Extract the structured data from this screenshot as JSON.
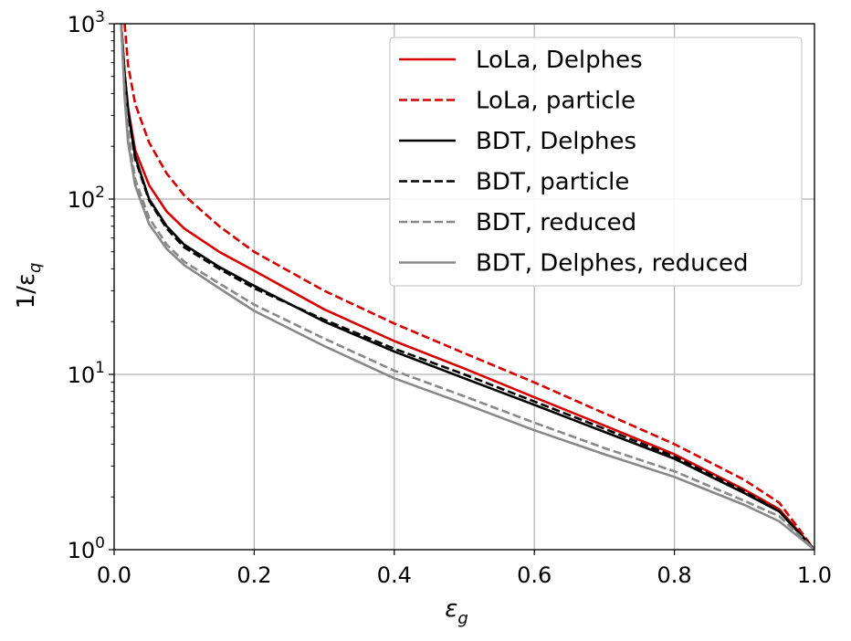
{
  "chart_data": {
    "type": "line",
    "title": "",
    "xlabel_main": "ε",
    "xlabel_sub": "g",
    "ylabel_main": "1/ε",
    "ylabel_sub": "q",
    "xlim": [
      0.0,
      1.0
    ],
    "ylim": [
      1,
      1000
    ],
    "yscale": "log",
    "grid": true,
    "legend_position": "top-right",
    "x_ticks": [
      "0.0",
      "0.2",
      "0.4",
      "0.6",
      "0.8",
      "1.0"
    ],
    "y_ticks": [
      {
        "base": "10",
        "exp": "0",
        "value": 1
      },
      {
        "base": "10",
        "exp": "1",
        "value": 10
      },
      {
        "base": "10",
        "exp": "2",
        "value": 100
      },
      {
        "base": "10",
        "exp": "3",
        "value": 1000
      }
    ],
    "series": [
      {
        "name": "LoLa, Delphes",
        "color": "#d40000",
        "dash": "solid",
        "x": [
          0.01,
          0.015,
          0.02,
          0.03,
          0.05,
          0.075,
          0.1,
          0.15,
          0.2,
          0.3,
          0.4,
          0.5,
          0.6,
          0.7,
          0.8,
          0.9,
          0.95,
          1.0
        ],
        "y": [
          1000,
          520,
          330,
          190,
          120,
          85,
          68,
          50,
          39,
          23.5,
          15.5,
          10.8,
          7.4,
          5.1,
          3.5,
          2.2,
          1.7,
          1.0
        ]
      },
      {
        "name": "LoLa, particle",
        "color": "#d40000",
        "dash": "dashed",
        "x": [
          0.015,
          0.02,
          0.03,
          0.05,
          0.075,
          0.1,
          0.15,
          0.2,
          0.3,
          0.4,
          0.5,
          0.6,
          0.7,
          0.8,
          0.9,
          0.95,
          1.0
        ],
        "y": [
          1000,
          580,
          350,
          210,
          140,
          105,
          70,
          50,
          30,
          19.5,
          13.2,
          9.0,
          6.0,
          4.0,
          2.5,
          1.85,
          1.0
        ]
      },
      {
        "name": "BDT, Delphes",
        "color": "#000000",
        "dash": "solid",
        "x": [
          0.01,
          0.015,
          0.02,
          0.03,
          0.05,
          0.075,
          0.1,
          0.15,
          0.2,
          0.3,
          0.4,
          0.5,
          0.6,
          0.7,
          0.8,
          0.9,
          0.95,
          1.0
        ],
        "y": [
          1000,
          520,
          320,
          175,
          100,
          70,
          55,
          41,
          32,
          20,
          13.5,
          9.5,
          6.7,
          4.7,
          3.3,
          2.1,
          1.65,
          1.0
        ]
      },
      {
        "name": "BDT, particle",
        "color": "#000000",
        "dash": "dashed",
        "x": [
          0.01,
          0.015,
          0.02,
          0.03,
          0.05,
          0.075,
          0.1,
          0.15,
          0.2,
          0.3,
          0.4,
          0.5,
          0.6,
          0.7,
          0.8,
          0.9,
          0.95,
          1.0
        ],
        "y": [
          1000,
          500,
          310,
          170,
          98,
          68,
          53,
          40,
          31,
          20.5,
          14,
          10,
          7.0,
          4.9,
          3.4,
          2.15,
          1.65,
          1.0
        ]
      },
      {
        "name": "BDT, reduced",
        "color": "#888888",
        "dash": "dashed",
        "x": [
          0.01,
          0.015,
          0.02,
          0.03,
          0.05,
          0.075,
          0.1,
          0.15,
          0.2,
          0.3,
          0.4,
          0.5,
          0.6,
          0.7,
          0.8,
          0.9,
          0.95,
          1.0
        ],
        "y": [
          1000,
          420,
          240,
          130,
          78,
          55,
          44,
          33,
          25,
          16,
          10.5,
          7.5,
          5.3,
          3.8,
          2.8,
          1.9,
          1.55,
          1.0
        ]
      },
      {
        "name": "BDT, Delphes, reduced",
        "color": "#888888",
        "dash": "solid",
        "x": [
          0.01,
          0.015,
          0.02,
          0.03,
          0.05,
          0.075,
          0.1,
          0.15,
          0.2,
          0.3,
          0.4,
          0.5,
          0.6,
          0.7,
          0.8,
          0.9,
          0.95,
          1.0
        ],
        "y": [
          1000,
          380,
          210,
          120,
          72,
          52,
          42,
          31,
          23,
          14.5,
          9.5,
          6.8,
          4.8,
          3.5,
          2.6,
          1.8,
          1.45,
          1.0
        ]
      }
    ]
  }
}
